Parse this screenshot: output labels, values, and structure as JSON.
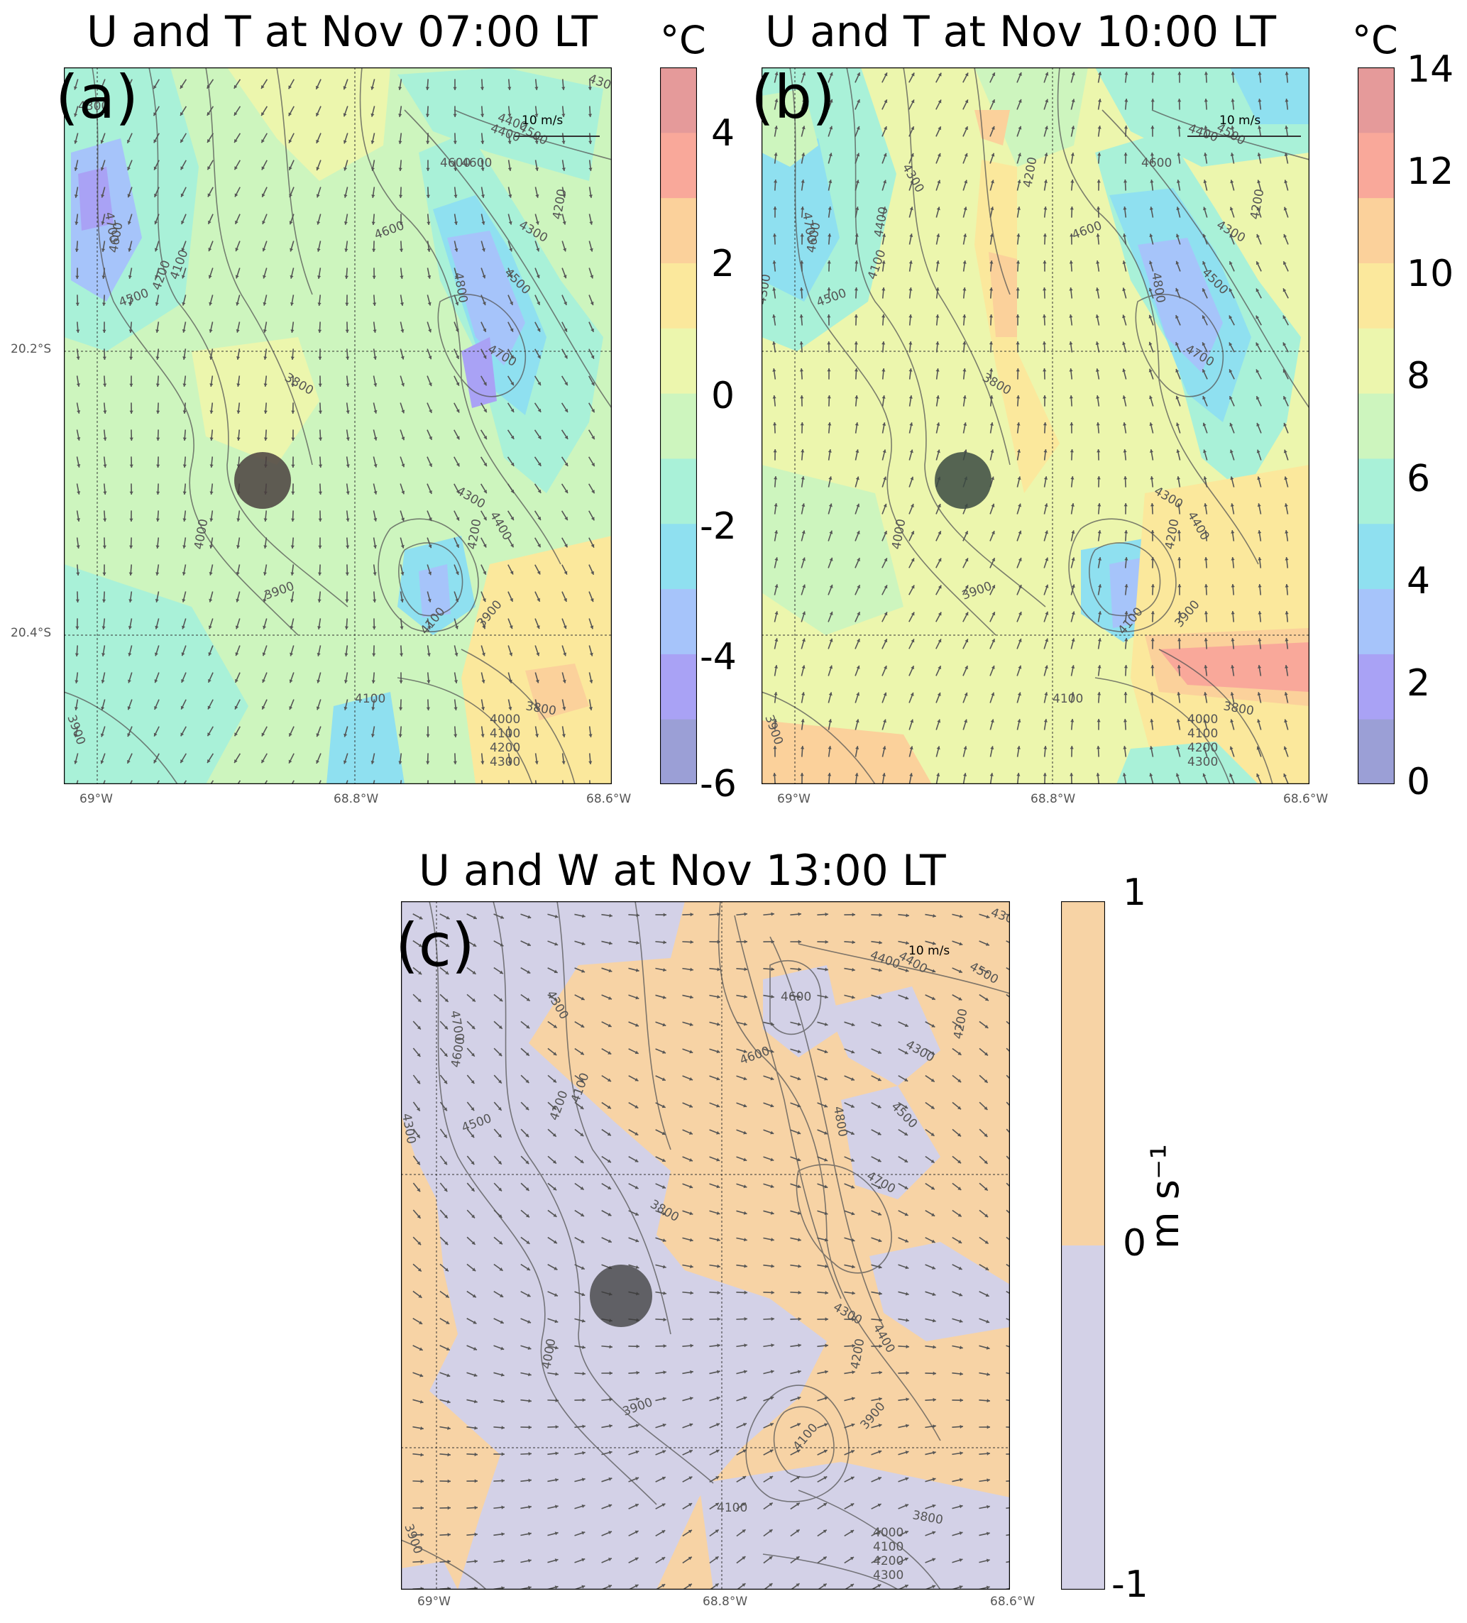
{
  "panels": [
    {
      "id": "a",
      "letter": "(a)",
      "title": "U and T at Nov 07:00 LT",
      "scale_label": "10 m/s",
      "colorbar_unit": "°C",
      "colorbar_ticks": [
        "4",
        "2",
        "0",
        "-2",
        "-4",
        "-6"
      ],
      "contour_labels": [
        "4300",
        "4700",
        "4600",
        "4500",
        "4100",
        "4200",
        "4400",
        "4500",
        "4600",
        "4600",
        "4300",
        "4200",
        "4400",
        "4600",
        "4500",
        "4800",
        "4700",
        "4300",
        "4400",
        "4200",
        "3800",
        "4000",
        "3900",
        "4100",
        "3900",
        "4000",
        "4100",
        "4200",
        "4300",
        "3800",
        "4100",
        "4300",
        "3900"
      ],
      "lat_labels": [
        "20.2°S",
        "20.4°S"
      ],
      "lon_labels": [
        "69°W",
        "68.8°W",
        "68.6°W"
      ]
    },
    {
      "id": "b",
      "letter": "(b)",
      "title": "U and T at Nov 10:00 LT",
      "scale_label": "10 m/s",
      "colorbar_unit": "°C",
      "colorbar_ticks": [
        "14",
        "12",
        "10",
        "8",
        "6",
        "4",
        "2",
        "0"
      ],
      "contour_labels": [
        "4700",
        "4600",
        "4500",
        "4300",
        "4100",
        "4400",
        "4300",
        "4200",
        "4500",
        "4600",
        "4400",
        "4300",
        "4200",
        "4600",
        "4500",
        "4800",
        "4700",
        "4300",
        "4400",
        "4200",
        "3800",
        "4000",
        "3900",
        "3900",
        "4100",
        "3800",
        "4000",
        "4100",
        "4200",
        "4300",
        "4100",
        "3900"
      ],
      "lon_labels": [
        "69°W",
        "68.8°W",
        "68.6°W"
      ]
    },
    {
      "id": "c",
      "letter": "(c)",
      "title": "U and W at Nov 13:00 LT",
      "scale_label": "10 m/s",
      "colorbar_unit": "m s⁻¹",
      "colorbar_ticks": [
        "1",
        "0",
        "-1"
      ],
      "contour_labels": [
        "4300",
        "4700",
        "4600",
        "4500",
        "4300",
        "4100",
        "4200",
        "4400",
        "4300",
        "4600",
        "4400",
        "4500",
        "4300",
        "4200",
        "4600",
        "4500",
        "4800",
        "4700",
        "4300",
        "4400",
        "4200",
        "3800",
        "4000",
        "3900",
        "3900",
        "4100",
        "3800",
        "4000",
        "4100",
        "4200",
        "4300",
        "4100",
        "3900"
      ],
      "lon_labels": [
        "69°W",
        "68.8°W",
        "68.6°W"
      ]
    }
  ],
  "colors": {
    "temp_scale": [
      "#9b9fd6",
      "#a9a2f5",
      "#a6c4fa",
      "#8fe0f0",
      "#a9f1d8",
      "#cdf5be",
      "#ecf6ad",
      "#fbe89c",
      "#fbd19b",
      "#f9a89a",
      "#e59a9a"
    ],
    "w_up": "#f7d3a5",
    "w_down": "#d3d1e7",
    "hill_marker": "#4a4040"
  }
}
